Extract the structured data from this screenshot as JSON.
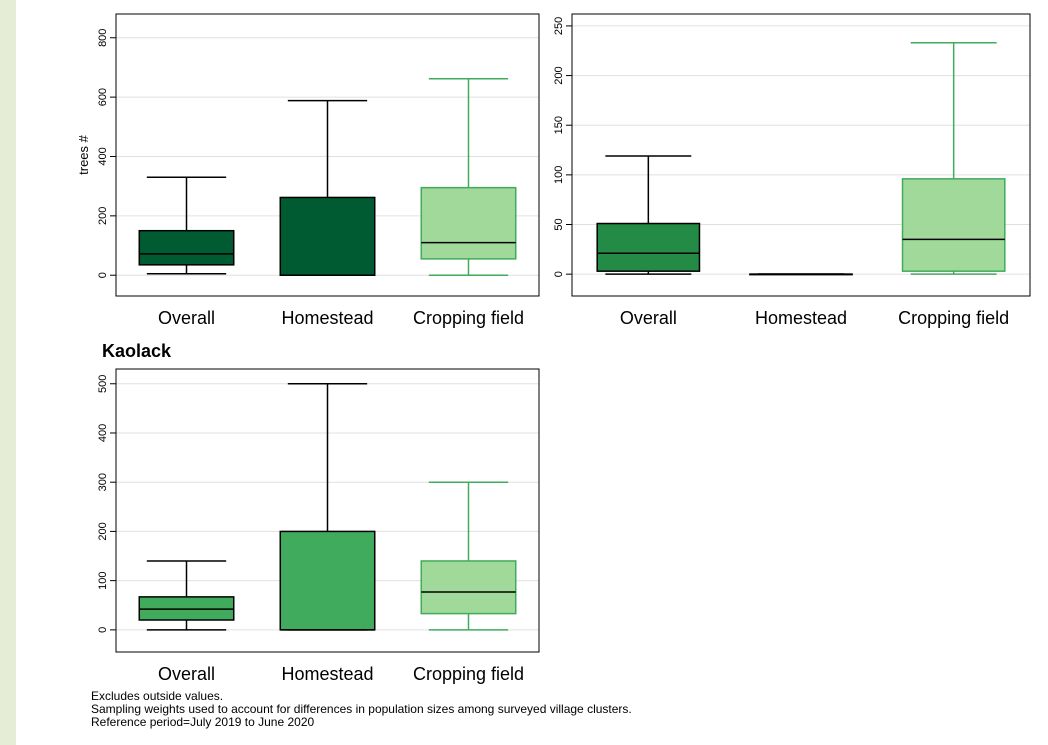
{
  "colors": {
    "page_bg": "#e6edd6",
    "panel_bg": "#ffffff",
    "grid": "#e0e0e0",
    "dark_green": "#005a32",
    "mid_green": "#238b45",
    "light_green": "#41ab5d",
    "pale_green": "#a1d99b",
    "outline_dark": "#000000",
    "outline_light": "#41ab5d"
  },
  "chart_data": [
    {
      "type": "box",
      "title": "",
      "ylabel": "trees #",
      "ylim": [
        -70,
        880
      ],
      "yticks": [
        "0",
        "200",
        "400",
        "600",
        "800"
      ],
      "grid": true,
      "categories": [
        "Overall",
        "Homestead",
        "Cropping field"
      ],
      "boxes": [
        {
          "min": 5,
          "q1": 35,
          "median": 72,
          "q3": 150,
          "max": 330,
          "fill": "#005a32",
          "stroke": "#000000"
        },
        {
          "min": 0,
          "q1": 0,
          "median": 0,
          "q3": 262,
          "max": 588,
          "fill": "#005a32",
          "stroke": "#000000"
        },
        {
          "min": 0,
          "q1": 55,
          "median": 110,
          "q3": 295,
          "max": 662,
          "fill": "#a1d99b",
          "stroke": "#41ab5d"
        }
      ]
    },
    {
      "type": "box",
      "title": "",
      "ylabel": "",
      "ylim": [
        -22,
        262
      ],
      "yticks": [
        "0",
        "50",
        "100",
        "150",
        "200",
        "250"
      ],
      "grid": true,
      "categories": [
        "Overall",
        "Homestead",
        "Cropping field"
      ],
      "boxes": [
        {
          "min": 0,
          "q1": 3,
          "median": 21,
          "q3": 51,
          "max": 119,
          "fill": "#238b45",
          "stroke": "#000000"
        },
        {
          "min": 0,
          "q1": 0,
          "median": 0,
          "q3": 0,
          "max": 0,
          "fill": "#238b45",
          "stroke": "#000000"
        },
        {
          "min": 0,
          "q1": 3,
          "median": 35,
          "q3": 96,
          "max": 233,
          "fill": "#a1d99b",
          "stroke": "#41ab5d"
        }
      ]
    },
    {
      "type": "box",
      "title": "Kaolack",
      "ylabel": "",
      "ylim": [
        -45,
        530
      ],
      "yticks": [
        "0",
        "100",
        "200",
        "300",
        "400",
        "500"
      ],
      "grid": true,
      "categories": [
        "Overall",
        "Homestead",
        "Cropping field"
      ],
      "boxes": [
        {
          "min": 0,
          "q1": 20,
          "median": 42,
          "q3": 67,
          "max": 140,
          "fill": "#41ab5d",
          "stroke": "#000000"
        },
        {
          "min": 0,
          "q1": 0,
          "median": 0,
          "q3": 200,
          "max": 500,
          "fill": "#41ab5d",
          "stroke": "#000000"
        },
        {
          "min": 0,
          "q1": 33,
          "median": 77,
          "q3": 140,
          "max": 300,
          "fill": "#a1d99b",
          "stroke": "#41ab5d"
        }
      ]
    }
  ],
  "notes": [
    "Excludes outside values.",
    "Sampling weights used to account for differences in population sizes among surveyed village clusters.",
    "Reference period=July 2019 to June 2020"
  ]
}
